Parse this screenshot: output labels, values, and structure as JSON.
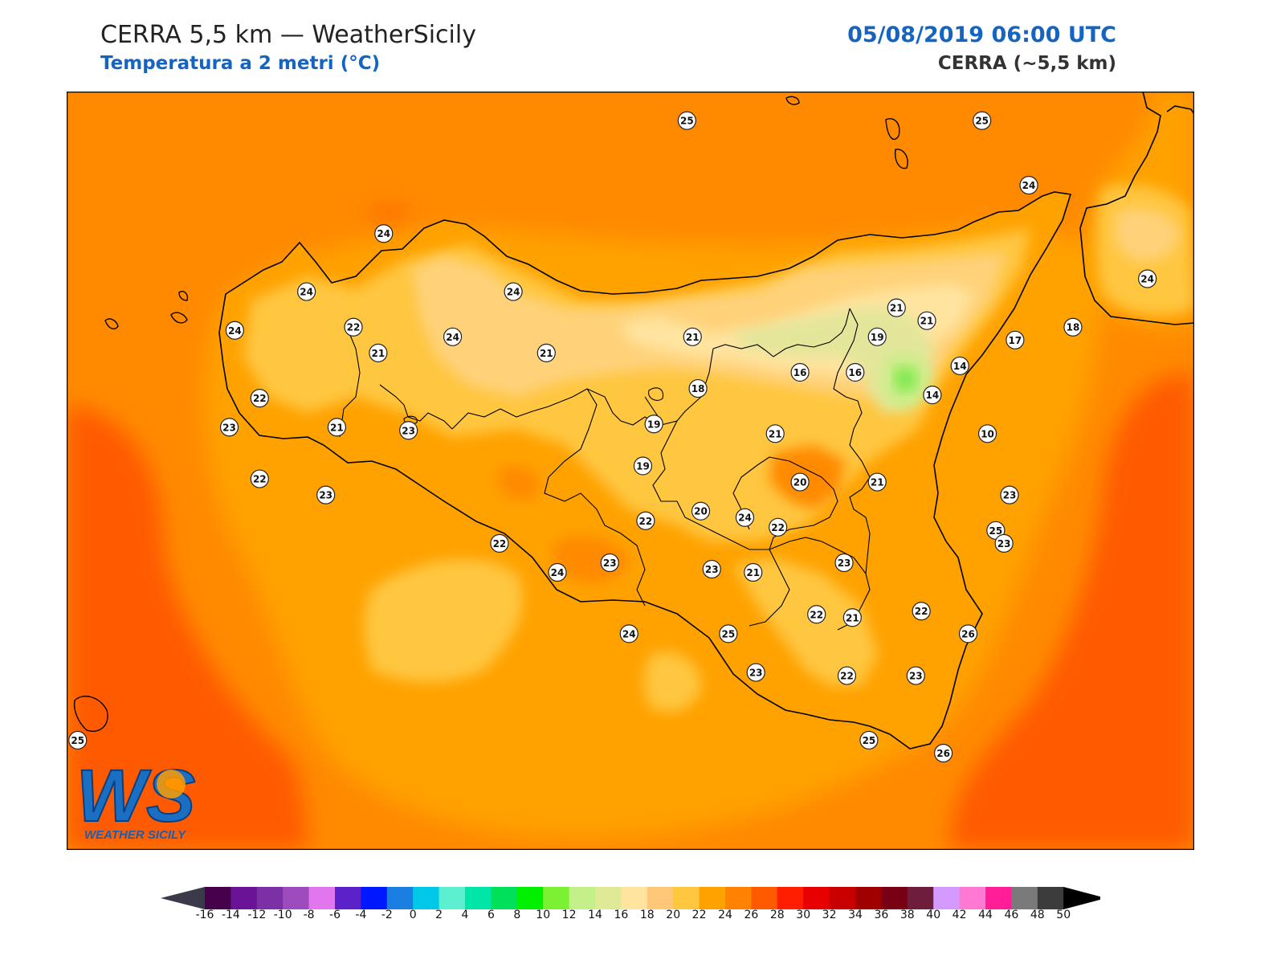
{
  "header": {
    "title": "CERRA 5,5 km — WeatherSicily",
    "subtitle": "Temperatura a 2 metri (°C)",
    "datetime": "05/08/2019 06:00 UTC",
    "model": "CERRA (~5,5 km)"
  },
  "logo": {
    "text": "WEATHER SICILY",
    "letters": "WS"
  },
  "colors": {
    "sea": "#ff8a00",
    "sea_warm": "#ff5a00",
    "land_22": "#ffa200",
    "land_20": "#ffc640",
    "land_18": "#ffd27a",
    "land_16": "#ffe4a0",
    "land_14": "#e3e69a",
    "land_12": "#c7ee86",
    "land_10": "#7ce84a",
    "border": "#000000"
  },
  "legend": {
    "ticks": [
      "-16",
      "-14",
      "-12",
      "-10",
      "-8",
      "-6",
      "-4",
      "-2",
      "0",
      "2",
      "4",
      "6",
      "8",
      "10",
      "12",
      "14",
      "16",
      "18",
      "20",
      "22",
      "24",
      "26",
      "28",
      "30",
      "32",
      "34",
      "36",
      "38",
      "40",
      "42",
      "44",
      "46",
      "48",
      "50"
    ],
    "colors": [
      "#46004c",
      "#6a1396",
      "#7b30a6",
      "#9c4cbc",
      "#e176ee",
      "#5a22c8",
      "#0018ff",
      "#1a7fe0",
      "#00c8e6",
      "#5cf0d0",
      "#00e6a8",
      "#00e05a",
      "#00f000",
      "#7cf032",
      "#c4f08a",
      "#e0ea96",
      "#ffe4a0",
      "#ffc878",
      "#ffc640",
      "#ffa200",
      "#ff8200",
      "#ff5a00",
      "#ff1e00",
      "#e60000",
      "#c80000",
      "#a00000",
      "#780014",
      "#6e1e3c",
      "#d49aff",
      "#ff78d2",
      "#ff1e96",
      "#7a7a7a",
      "#3c3c3c"
    ],
    "under_color": "#3a3a4a",
    "over_color": "#000000"
  },
  "stations": [
    {
      "label": "25",
      "lon": 14.18,
      "lat": 38.71
    },
    {
      "label": "25",
      "lon": 15.25,
      "lat": 38.71
    },
    {
      "label": "24",
      "lon": 12.8,
      "lat": 38.18
    },
    {
      "label": "24",
      "lon": 13.55,
      "lat": 38.18
    },
    {
      "label": "24",
      "lon": 13.08,
      "lat": 38.36
    },
    {
      "label": "24",
      "lon": 15.85,
      "lat": 38.22
    },
    {
      "label": "24",
      "lon": 15.42,
      "lat": 38.51
    },
    {
      "label": "24",
      "lon": 12.54,
      "lat": 38.06
    },
    {
      "label": "22",
      "lon": 12.97,
      "lat": 38.07
    },
    {
      "label": "21",
      "lon": 13.06,
      "lat": 37.99
    },
    {
      "label": "24",
      "lon": 13.33,
      "lat": 38.04
    },
    {
      "label": "21",
      "lon": 13.67,
      "lat": 37.99
    },
    {
      "label": "21",
      "lon": 14.2,
      "lat": 38.04
    },
    {
      "label": "19",
      "lon": 14.87,
      "lat": 38.04
    },
    {
      "label": "21",
      "lon": 15.05,
      "lat": 38.09
    },
    {
      "label": "21",
      "lon": 14.94,
      "lat": 38.13
    },
    {
      "label": "18",
      "lon": 15.58,
      "lat": 38.07
    },
    {
      "label": "17",
      "lon": 15.37,
      "lat": 38.03
    },
    {
      "label": "18",
      "lon": 14.22,
      "lat": 37.88
    },
    {
      "label": "16",
      "lon": 14.59,
      "lat": 37.93
    },
    {
      "label": "16",
      "lon": 14.79,
      "lat": 37.93
    },
    {
      "label": "14",
      "lon": 15.07,
      "lat": 37.86
    },
    {
      "label": "14",
      "lon": 15.17,
      "lat": 37.95
    },
    {
      "label": "22",
      "lon": 12.63,
      "lat": 37.85
    },
    {
      "label": "23",
      "lon": 12.52,
      "lat": 37.76
    },
    {
      "label": "21",
      "lon": 12.91,
      "lat": 37.76
    },
    {
      "label": "23",
      "lon": 13.17,
      "lat": 37.75
    },
    {
      "label": "19",
      "lon": 14.06,
      "lat": 37.77
    },
    {
      "label": "21",
      "lon": 14.5,
      "lat": 37.74
    },
    {
      "label": "10",
      "lon": 15.27,
      "lat": 37.74
    },
    {
      "label": "19",
      "lon": 14.02,
      "lat": 37.64
    },
    {
      "label": "22",
      "lon": 12.63,
      "lat": 37.6
    },
    {
      "label": "23",
      "lon": 12.87,
      "lat": 37.55
    },
    {
      "label": "20",
      "lon": 14.59,
      "lat": 37.59
    },
    {
      "label": "21",
      "lon": 14.87,
      "lat": 37.59
    },
    {
      "label": "23",
      "lon": 15.35,
      "lat": 37.55
    },
    {
      "label": "22",
      "lon": 14.03,
      "lat": 37.47
    },
    {
      "label": "20",
      "lon": 14.23,
      "lat": 37.5
    },
    {
      "label": "24",
      "lon": 14.39,
      "lat": 37.48
    },
    {
      "label": "22",
      "lon": 14.51,
      "lat": 37.45
    },
    {
      "label": "25",
      "lon": 15.3,
      "lat": 37.44
    },
    {
      "label": "22",
      "lon": 13.5,
      "lat": 37.4
    },
    {
      "label": "23",
      "lon": 15.33,
      "lat": 37.4
    },
    {
      "label": "24",
      "lon": 13.71,
      "lat": 37.31
    },
    {
      "label": "23",
      "lon": 13.9,
      "lat": 37.34
    },
    {
      "label": "23",
      "lon": 14.27,
      "lat": 37.32
    },
    {
      "label": "21",
      "lon": 14.42,
      "lat": 37.31
    },
    {
      "label": "23",
      "lon": 14.75,
      "lat": 37.34
    },
    {
      "label": "22",
      "lon": 15.03,
      "lat": 37.19
    },
    {
      "label": "21",
      "lon": 14.78,
      "lat": 37.17
    },
    {
      "label": "22",
      "lon": 14.65,
      "lat": 37.18
    },
    {
      "label": "26",
      "lon": 15.2,
      "lat": 37.12
    },
    {
      "label": "24",
      "lon": 13.97,
      "lat": 37.12
    },
    {
      "label": "25",
      "lon": 14.33,
      "lat": 37.12
    },
    {
      "label": "23",
      "lon": 14.43,
      "lat": 37.0
    },
    {
      "label": "22",
      "lon": 14.76,
      "lat": 36.99
    },
    {
      "label": "23",
      "lon": 15.01,
      "lat": 36.99
    },
    {
      "label": "25",
      "lon": 14.84,
      "lat": 36.79
    },
    {
      "label": "26",
      "lon": 15.11,
      "lat": 36.75
    },
    {
      "label": "25",
      "lon": 11.97,
      "lat": 36.79
    }
  ]
}
